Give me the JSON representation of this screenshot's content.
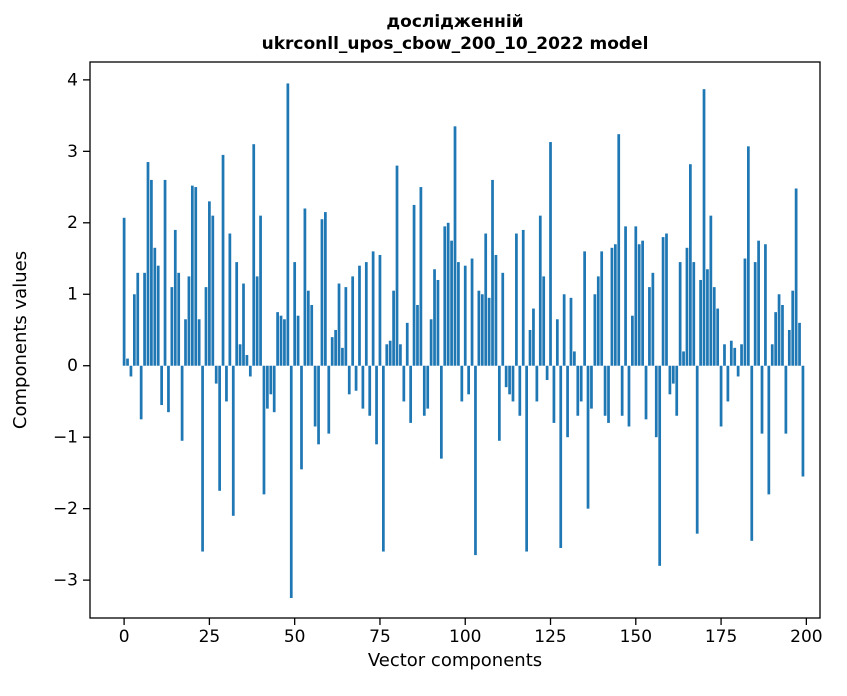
{
  "figure": {
    "background": "#ffffff"
  },
  "chart_data": {
    "type": "bar",
    "title_lines": [
      "дослідженній",
      "ukrconll_upos_cbow_200_10_2022 model"
    ],
    "title": "дослідженній\nukrconll_upos_cbow_200_10_2022 model",
    "xlabel": "Vector components",
    "ylabel": "Components values",
    "bar_color": "#1f77b4",
    "axis_color": "#000000",
    "legend": "off",
    "grid": "off",
    "x_start": 0,
    "xlim": [
      -10,
      204
    ],
    "ylim": [
      -3.53,
      4.25
    ],
    "xticks": [
      0,
      25,
      50,
      75,
      100,
      125,
      150,
      175,
      200
    ],
    "yticks": [
      -3,
      -2,
      -1,
      0,
      1,
      2,
      3,
      4
    ],
    "values": [
      2.07,
      0.1,
      -0.15,
      1.0,
      1.3,
      -0.75,
      1.3,
      2.85,
      2.6,
      1.65,
      1.4,
      -0.55,
      2.6,
      -0.65,
      1.1,
      1.9,
      1.3,
      -1.05,
      0.65,
      1.25,
      2.52,
      2.5,
      0.65,
      -2.6,
      1.1,
      2.3,
      2.1,
      -0.25,
      -1.75,
      2.95,
      -0.5,
      1.85,
      -2.1,
      1.45,
      0.3,
      1.15,
      0.15,
      -0.15,
      3.1,
      1.25,
      2.1,
      -1.8,
      -0.6,
      -0.4,
      -0.65,
      0.75,
      0.7,
      0.65,
      3.95,
      -3.25,
      1.45,
      0.7,
      -1.45,
      2.2,
      1.05,
      0.85,
      -0.85,
      -1.1,
      2.05,
      2.15,
      -0.95,
      0.4,
      0.5,
      1.15,
      0.25,
      1.1,
      -0.4,
      1.25,
      -0.35,
      1.4,
      -0.6,
      1.45,
      -0.7,
      1.6,
      -1.1,
      1.55,
      -2.6,
      0.3,
      0.35,
      1.05,
      2.8,
      0.3,
      -0.5,
      0.6,
      -0.8,
      2.25,
      0.85,
      2.5,
      -0.7,
      -0.6,
      0.65,
      1.35,
      1.2,
      -1.3,
      1.95,
      2.0,
      1.75,
      3.35,
      1.45,
      -0.5,
      1.4,
      -0.4,
      1.5,
      -2.65,
      1.05,
      1.0,
      1.85,
      0.95,
      2.6,
      1.55,
      -1.05,
      1.3,
      -0.3,
      -0.4,
      -0.5,
      1.85,
      -0.7,
      1.9,
      -2.6,
      0.5,
      0.8,
      -0.5,
      2.1,
      1.25,
      -0.2,
      3.13,
      -0.8,
      0.65,
      -2.55,
      1.0,
      -1.0,
      0.95,
      0.2,
      -0.7,
      -0.5,
      1.6,
      -2.0,
      -0.6,
      1.0,
      1.25,
      1.6,
      -0.7,
      -0.8,
      1.65,
      1.7,
      3.24,
      -0.7,
      1.95,
      -0.85,
      0.7,
      1.95,
      1.7,
      1.75,
      -0.75,
      1.1,
      1.3,
      -1.0,
      -2.8,
      1.8,
      1.85,
      -0.4,
      -0.25,
      -0.7,
      1.45,
      0.2,
      1.65,
      2.82,
      1.45,
      -2.35,
      1.2,
      3.87,
      1.35,
      2.1,
      1.1,
      0.8,
      -0.85,
      0.3,
      -0.5,
      0.35,
      0.25,
      -0.15,
      0.3,
      1.5,
      3.07,
      -2.45,
      1.45,
      1.75,
      -0.95,
      1.7,
      -1.8,
      0.3,
      0.75,
      1.0,
      0.85,
      -0.95,
      0.5,
      1.05,
      2.48,
      0.6,
      -1.55
    ]
  }
}
